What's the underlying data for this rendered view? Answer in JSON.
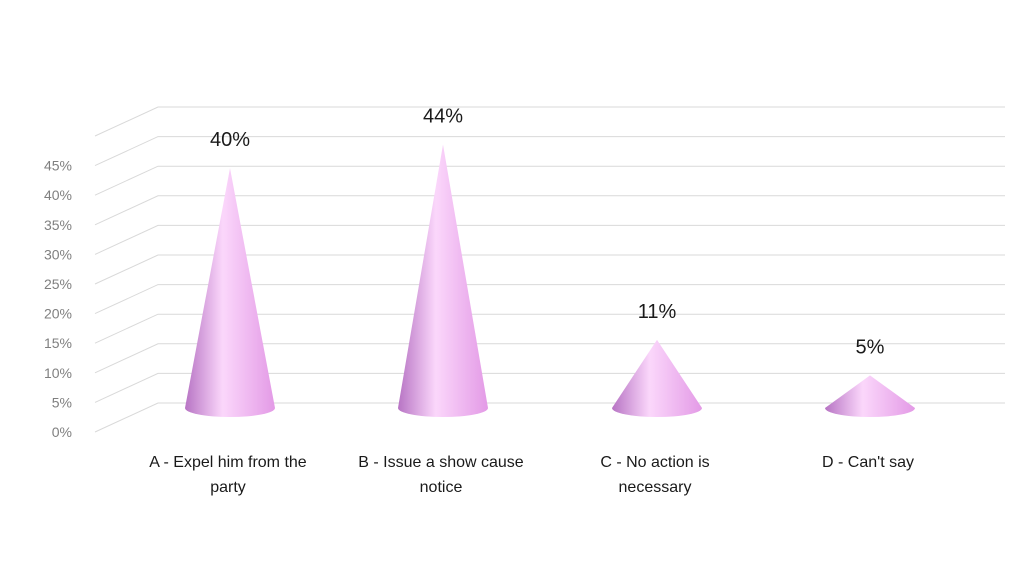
{
  "chart_data": {
    "type": "bar",
    "style": "3d-cone",
    "categories": [
      "A - Expel him from the party",
      "B - Issue a show cause notice",
      "C - No action is necessary",
      "D - Can't say"
    ],
    "values": [
      40,
      44,
      11,
      5
    ],
    "data_labels": [
      "40%",
      "44%",
      "11%",
      "5%"
    ],
    "yticks": [
      "0%",
      "5%",
      "10%",
      "15%",
      "20%",
      "25%",
      "30%",
      "35%",
      "40%",
      "45%"
    ],
    "ylim": [
      0,
      50
    ],
    "grid": true,
    "legend": "none",
    "title": "",
    "xlabel": "",
    "ylabel": ""
  },
  "colors": {
    "cone_light": "#fbd7fb",
    "cone_mid": "#e39ae6",
    "cone_dark": "#b774c4",
    "grid": "#d9d9d9"
  }
}
